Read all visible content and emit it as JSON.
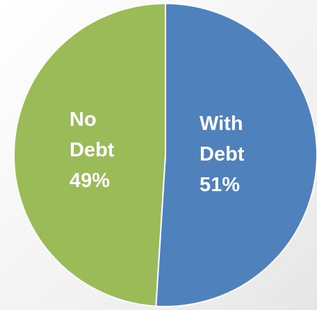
{
  "chart_data": {
    "type": "pie",
    "categories": [
      "With Debt",
      "No Debt"
    ],
    "values": [
      51,
      49
    ],
    "value_labels": [
      "51%",
      "49%"
    ],
    "colors": [
      "#4f81bd",
      "#9bbb59"
    ]
  }
}
